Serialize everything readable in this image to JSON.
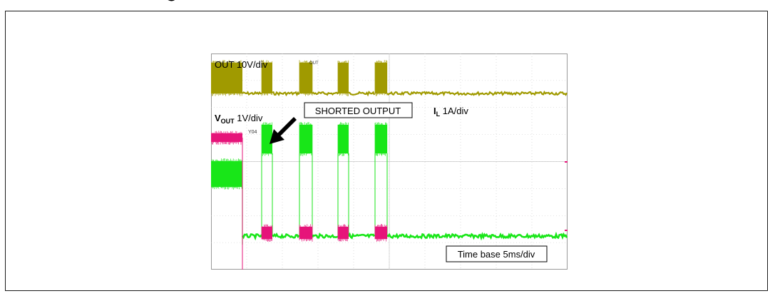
{
  "colors": {
    "page_background": "#ffffff",
    "frame": "#1a1a1a",
    "scope_background": "#ffffff",
    "grid": "#c8c8c8",
    "out_trace": "#a09a00",
    "il_trace": "#19e619",
    "vout_trace": "#e6157a",
    "arrow": "#000000"
  },
  "chart_data": {
    "type": "line",
    "time_base_per_div_ms": 5,
    "x_divisions": 10,
    "y_divisions": 8,
    "grid": true,
    "series": [
      {
        "name": "OUT",
        "channel_label": "OUT 10V/div",
        "marker_text": "OUT",
        "segments": [
          {
            "t_ms": [
              0.0,
              4.4
            ],
            "state": "high"
          },
          {
            "t_ms": [
              7.1,
              8.6
            ],
            "state": "high"
          },
          {
            "t_ms": [
              12.4,
              14.2
            ],
            "state": "high"
          },
          {
            "t_ms": [
              17.8,
              19.3
            ],
            "state": "high"
          },
          {
            "t_ms": [
              23.0,
              24.7
            ],
            "state": "high"
          }
        ]
      },
      {
        "name": "I_L",
        "channel_label_main": "I",
        "channel_label_sub": "L",
        "channel_label_tail": " 1A/div",
        "segments": [
          {
            "t_ms": [
              0.0,
              4.4
            ],
            "state": "mid"
          },
          {
            "t_ms": [
              7.1,
              8.6
            ],
            "state": "high"
          },
          {
            "t_ms": [
              12.4,
              14.2
            ],
            "state": "high"
          },
          {
            "t_ms": [
              17.8,
              19.3
            ],
            "state": "high"
          },
          {
            "t_ms": [
              23.0,
              24.7
            ],
            "state": "high"
          }
        ]
      },
      {
        "name": "V_OUT",
        "channel_label_main": "V",
        "channel_label_sub": "OUT",
        "channel_label_tail": " 1V/div",
        "marker_text": "Y04",
        "segments": [
          {
            "t_ms": [
              0.0,
              4.4
            ],
            "state": "high"
          },
          {
            "t_ms": [
              7.1,
              8.6
            ],
            "state": "bump"
          },
          {
            "t_ms": [
              12.4,
              14.2
            ],
            "state": "bump"
          },
          {
            "t_ms": [
              17.8,
              19.3
            ],
            "state": "bump"
          },
          {
            "t_ms": [
              23.0,
              24.7
            ],
            "state": "bump"
          }
        ]
      }
    ],
    "annotations": {
      "shorted_output": "SHORTED OUTPUT",
      "time_base": "Time base 5ms/div"
    }
  }
}
